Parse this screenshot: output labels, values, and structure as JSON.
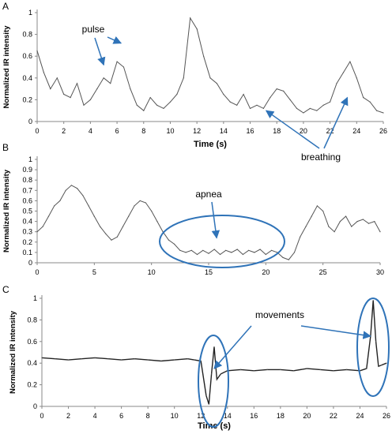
{
  "figure": {
    "accent_color": "#2f73b8",
    "trace_color": "#555555"
  },
  "chart_data": [
    {
      "panel": "A",
      "type": "line",
      "xlabel": "Time (s)",
      "ylabel": "Normalized IR intensity",
      "xlim": [
        0,
        26
      ],
      "ylim": [
        0,
        1
      ],
      "xticks": [
        "0",
        "2",
        "4",
        "6",
        "8",
        "10",
        "12",
        "14",
        "16",
        "18",
        "20",
        "22",
        "24",
        "26"
      ],
      "yticks": [
        "0",
        "0.2",
        "0.4",
        "0.6",
        "0.8",
        "1"
      ],
      "grid": false,
      "annotations": [
        {
          "text": "pulse",
          "points_to": [
            [
              5.0,
              0.52
            ],
            [
              6.3,
              0.72
            ]
          ]
        },
        {
          "text": "breathing",
          "points_to": [
            [
              17.2,
              0.1
            ],
            [
              23.3,
              0.22
            ]
          ]
        }
      ],
      "series": [
        {
          "x": [
            0,
            0.5,
            1,
            1.5,
            2,
            2.5,
            3,
            3.5,
            4,
            4.5,
            5,
            5.5,
            6,
            6.5,
            7,
            7.5,
            8,
            8.5,
            9,
            9.5,
            10,
            10.5,
            11,
            11.5,
            12,
            12.5,
            13,
            13.5,
            14,
            14.5,
            15,
            15.5,
            16,
            16.5,
            17,
            17.5,
            18,
            18.5,
            19,
            19.5,
            20,
            20.5,
            21,
            21.5,
            22,
            22.5,
            23,
            23.5,
            24,
            24.5,
            25,
            25.5,
            26
          ],
          "values": [
            0.65,
            0.45,
            0.3,
            0.4,
            0.25,
            0.22,
            0.35,
            0.15,
            0.2,
            0.3,
            0.4,
            0.35,
            0.55,
            0.5,
            0.3,
            0.15,
            0.1,
            0.22,
            0.15,
            0.12,
            0.18,
            0.25,
            0.4,
            0.95,
            0.85,
            0.6,
            0.4,
            0.35,
            0.25,
            0.18,
            0.15,
            0.25,
            0.12,
            0.15,
            0.12,
            0.22,
            0.3,
            0.28,
            0.2,
            0.12,
            0.08,
            0.12,
            0.1,
            0.15,
            0.18,
            0.35,
            0.45,
            0.55,
            0.4,
            0.22,
            0.18,
            0.1,
            0.08
          ]
        }
      ]
    },
    {
      "panel": "B",
      "type": "line",
      "xlabel": "",
      "ylabel": "Normalized IR intensity",
      "xlim": [
        0,
        30
      ],
      "ylim": [
        0,
        1
      ],
      "xticks": [
        "0",
        "5",
        "10",
        "15",
        "20",
        "25",
        "30"
      ],
      "yticks": [
        "0",
        "0.1",
        "0.2",
        "0.3",
        "0.4",
        "0.5",
        "0.6",
        "0.7",
        "0.8",
        "0.9",
        "1"
      ],
      "grid": false,
      "annotations": [
        {
          "text": "apnea",
          "points_to": [
            [
              15.7,
              0.24
            ]
          ]
        }
      ],
      "series": [
        {
          "x": [
            0,
            0.5,
            1,
            1.5,
            2,
            2.5,
            3,
            3.5,
            4,
            4.5,
            5,
            5.5,
            6,
            6.5,
            7,
            7.5,
            8,
            8.5,
            9,
            9.5,
            10,
            10.5,
            11,
            11.5,
            12,
            12.5,
            13,
            13.5,
            14,
            14.5,
            15,
            15.5,
            16,
            16.5,
            17,
            17.5,
            18,
            18.5,
            19,
            19.5,
            20,
            20.5,
            21,
            21.5,
            22,
            22.5,
            23,
            23.5,
            24,
            24.5,
            25,
            25.5,
            26,
            26.5,
            27,
            27.5,
            28,
            28.5,
            29,
            29.5,
            30
          ],
          "values": [
            0.3,
            0.35,
            0.45,
            0.55,
            0.6,
            0.7,
            0.75,
            0.72,
            0.65,
            0.55,
            0.45,
            0.35,
            0.28,
            0.22,
            0.25,
            0.35,
            0.45,
            0.55,
            0.6,
            0.58,
            0.5,
            0.4,
            0.3,
            0.22,
            0.18,
            0.12,
            0.1,
            0.12,
            0.08,
            0.12,
            0.09,
            0.13,
            0.08,
            0.12,
            0.1,
            0.13,
            0.08,
            0.12,
            0.1,
            0.13,
            0.08,
            0.12,
            0.1,
            0.05,
            0.03,
            0.1,
            0.25,
            0.35,
            0.45,
            0.55,
            0.5,
            0.35,
            0.3,
            0.4,
            0.45,
            0.35,
            0.4,
            0.42,
            0.38,
            0.4,
            0.3
          ]
        }
      ]
    },
    {
      "panel": "C",
      "type": "line",
      "xlabel": "Time (s)",
      "ylabel": "Normalized IR intensity",
      "xlim": [
        0,
        26
      ],
      "ylim": [
        0,
        1
      ],
      "xticks": [
        "0",
        "2",
        "4",
        "6",
        "8",
        "10",
        "12",
        "14",
        "16",
        "18",
        "20",
        "22",
        "24",
        "26"
      ],
      "yticks": [
        "0",
        "0.2",
        "0.4",
        "0.6",
        "0.8",
        "1"
      ],
      "grid": false,
      "annotations": [
        {
          "text": "movements",
          "points_to": [
            [
              13.0,
              0.35
            ],
            [
              24.8,
              0.65
            ]
          ]
        }
      ],
      "series": [
        {
          "x": [
            0,
            1,
            2,
            3,
            4,
            5,
            6,
            7,
            8,
            9,
            10,
            11,
            11.5,
            12,
            12.4,
            12.6,
            12.8,
            13.0,
            13.2,
            13.5,
            14,
            15,
            16,
            17,
            18,
            19,
            20,
            21,
            22,
            23,
            24,
            24.5,
            24.8,
            25.0,
            25.2,
            25.4,
            25.6,
            26
          ],
          "values": [
            0.45,
            0.44,
            0.43,
            0.44,
            0.45,
            0.44,
            0.43,
            0.44,
            0.43,
            0.42,
            0.43,
            0.44,
            0.43,
            0.42,
            0.1,
            0.02,
            0.3,
            0.55,
            0.25,
            0.3,
            0.33,
            0.34,
            0.33,
            0.34,
            0.34,
            0.33,
            0.35,
            0.34,
            0.33,
            0.34,
            0.33,
            0.35,
            0.65,
            0.98,
            0.6,
            0.37,
            0.38,
            0.4
          ]
        }
      ]
    }
  ]
}
